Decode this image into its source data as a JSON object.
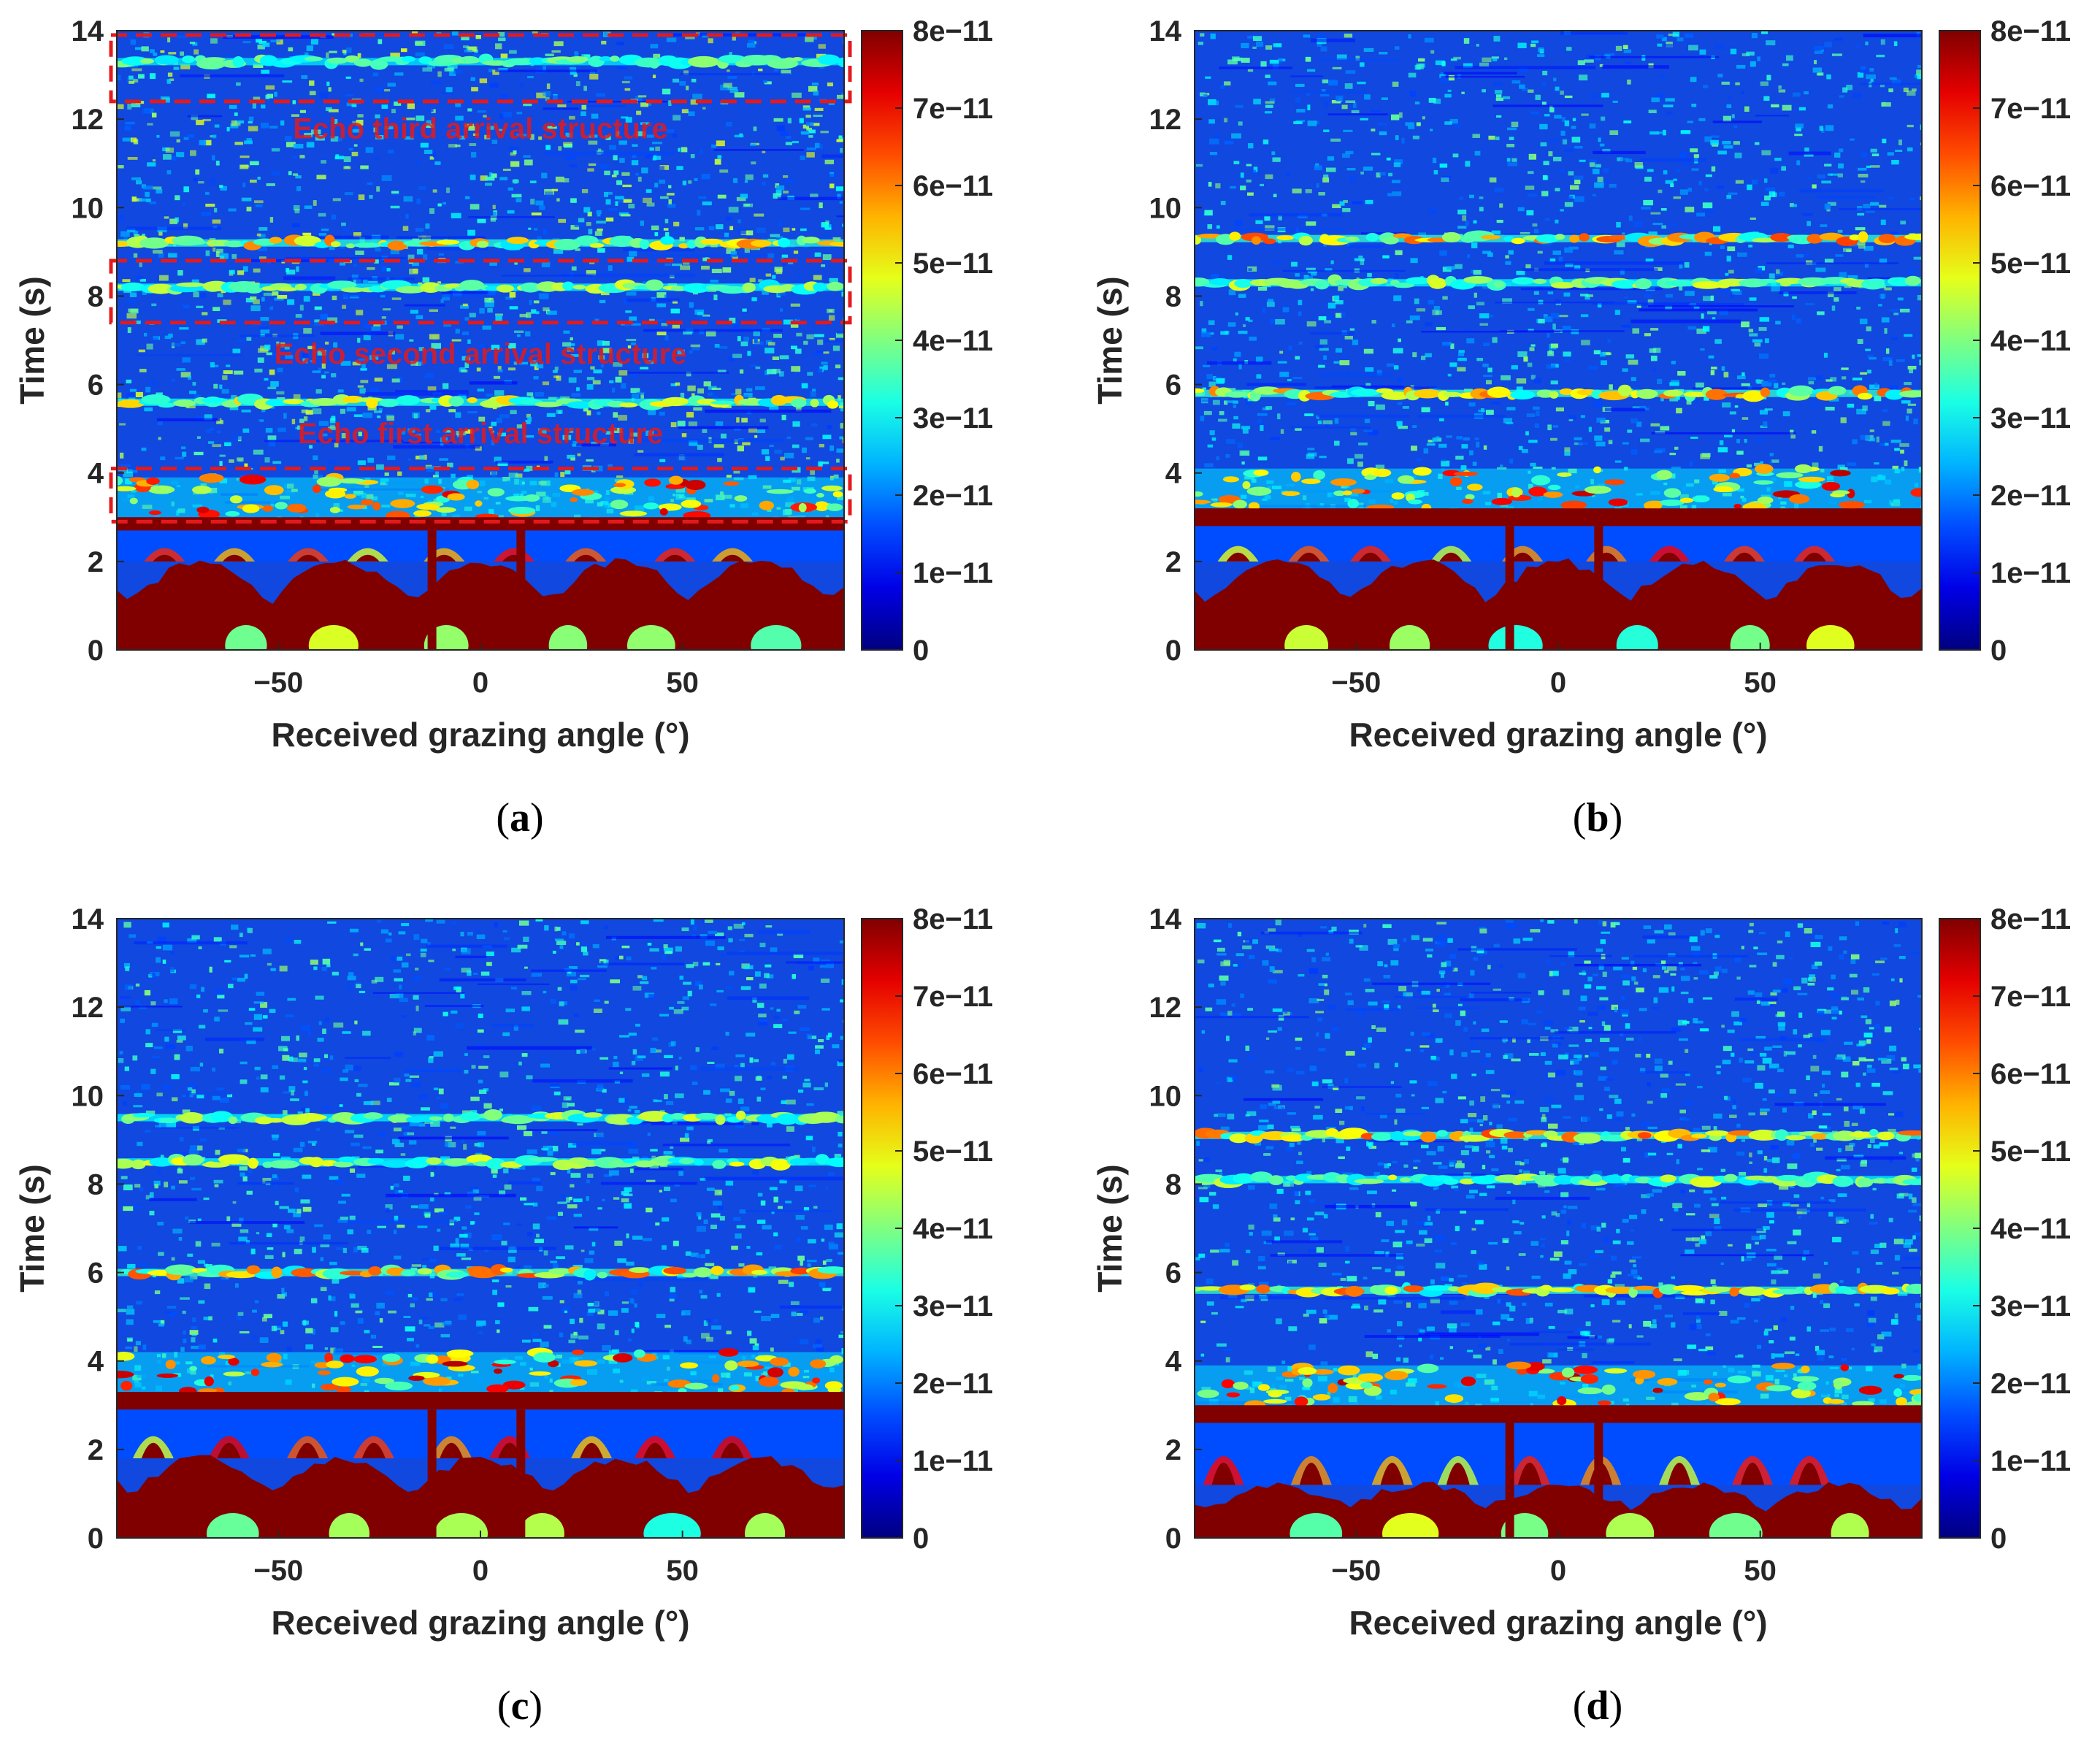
{
  "figure": {
    "colormap": "jet",
    "colors": {
      "low": "#00008f",
      "background": "#1048e0",
      "mid": "#00ffff",
      "high": "#ffff00",
      "saturated": "#800000",
      "annotation": "#e31a1c"
    }
  },
  "chart_data": [
    {
      "id": "a",
      "type": "heatmap",
      "caption_letter": "a",
      "xlabel": "Received grazing angle (°)",
      "ylabel": "Time (s)",
      "xlim": [
        -90,
        90
      ],
      "ylim": [
        0,
        14
      ],
      "xticks": [
        -50,
        0,
        50
      ],
      "xtick_labels": [
        "−50",
        "0",
        "50"
      ],
      "yticks": [
        0,
        2,
        4,
        6,
        8,
        10,
        12,
        14
      ],
      "ytick_labels": [
        "0",
        "2",
        "4",
        "6",
        "8",
        "10",
        "12",
        "14"
      ],
      "colorbar": {
        "min": 0,
        "max": 8e-11,
        "ticks": [
          0,
          1e-11,
          2e-11,
          3e-11,
          4e-11,
          5e-11,
          6e-11,
          7e-11,
          8e-11
        ],
        "tick_labels": [
          "0",
          "1e−11",
          "2e−11",
          "3e−11",
          "4e−11",
          "5e−11",
          "6e−11",
          "7e−11",
          "8e−11"
        ]
      },
      "features": {
        "direct_band": [
          0.0,
          2.0
        ],
        "strong_band": [
          2.7,
          3.0
        ],
        "echo_bands": [
          {
            "t": 5.6,
            "level": 0.6
          },
          {
            "t": 8.2,
            "level": 0.45
          },
          {
            "t": 9.2,
            "level": 0.75
          },
          {
            "t": 13.3,
            "level": 0.3
          }
        ],
        "noise_level": 0.35
      },
      "annotations": [
        {
          "name": "first-arrival",
          "text": "Echo first arrival structure",
          "t_range": [
            2.9,
            4.1
          ],
          "label_t": 4.9
        },
        {
          "name": "second-arrival",
          "text": "Echo second arrival structure",
          "t_range": [
            7.4,
            8.8
          ],
          "label_t": 6.7
        },
        {
          "name": "third-arrival",
          "text": "Echo third arrival structure",
          "t_range": [
            12.4,
            13.9
          ],
          "label_t": 11.8
        }
      ]
    },
    {
      "id": "b",
      "type": "heatmap",
      "caption_letter": "b",
      "xlabel": "Received grazing angle (°)",
      "ylabel": "Time (s)",
      "xlim": [
        -90,
        90
      ],
      "ylim": [
        0,
        14
      ],
      "xticks": [
        -50,
        0,
        50
      ],
      "xtick_labels": [
        "−50",
        "0",
        "50"
      ],
      "yticks": [
        0,
        2,
        4,
        6,
        8,
        10,
        12,
        14
      ],
      "ytick_labels": [
        "0",
        "2",
        "4",
        "6",
        "8",
        "10",
        "12",
        "14"
      ],
      "colorbar": {
        "min": 0,
        "max": 8e-11,
        "ticks": [
          0,
          1e-11,
          2e-11,
          3e-11,
          4e-11,
          5e-11,
          6e-11,
          7e-11,
          8e-11
        ],
        "tick_labels": [
          "0",
          "1e−11",
          "2e−11",
          "3e−11",
          "4e−11",
          "5e−11",
          "6e−11",
          "7e−11",
          "8e−11"
        ]
      },
      "features": {
        "direct_band": [
          0.0,
          2.0
        ],
        "strong_band": [
          2.8,
          3.2
        ],
        "echo_bands": [
          {
            "t": 5.8,
            "level": 0.85
          },
          {
            "t": 8.3,
            "level": 0.45
          },
          {
            "t": 9.3,
            "level": 0.85
          }
        ],
        "noise_level": 0.2
      },
      "annotations": []
    },
    {
      "id": "c",
      "type": "heatmap",
      "caption_letter": "c",
      "xlabel": "Received grazing angle (°)",
      "ylabel": "Time (s)",
      "xlim": [
        -90,
        90
      ],
      "ylim": [
        0,
        14
      ],
      "xticks": [
        -50,
        0,
        50
      ],
      "xtick_labels": [
        "−50",
        "0",
        "50"
      ],
      "yticks": [
        0,
        2,
        4,
        6,
        8,
        10,
        12,
        14
      ],
      "ytick_labels": [
        "0",
        "2",
        "4",
        "6",
        "8",
        "10",
        "12",
        "14"
      ],
      "colorbar": {
        "min": 0,
        "max": 8e-11,
        "ticks": [
          0,
          1e-11,
          2e-11,
          3e-11,
          4e-11,
          5e-11,
          6e-11,
          7e-11,
          8e-11
        ],
        "tick_labels": [
          "0",
          "1e−11",
          "2e−11",
          "3e−11",
          "4e−11",
          "5e−11",
          "6e−11",
          "7e−11",
          "8e−11"
        ]
      },
      "features": {
        "direct_band": [
          0.0,
          1.8
        ],
        "strong_band": [
          2.9,
          3.3
        ],
        "echo_bands": [
          {
            "t": 6.0,
            "level": 0.85
          },
          {
            "t": 8.5,
            "level": 0.5
          },
          {
            "t": 9.5,
            "level": 0.45
          }
        ],
        "noise_level": 0.18
      },
      "annotations": []
    },
    {
      "id": "d",
      "type": "heatmap",
      "caption_letter": "d",
      "xlabel": "Received grazing angle (°)",
      "ylabel": "Time (s)",
      "xlim": [
        -90,
        90
      ],
      "ylim": [
        0,
        14
      ],
      "xticks": [
        -50,
        0,
        50
      ],
      "xtick_labels": [
        "−50",
        "0",
        "50"
      ],
      "yticks": [
        0,
        2,
        4,
        6,
        8,
        10,
        12,
        14
      ],
      "ytick_labels": [
        "0",
        "2",
        "4",
        "6",
        "8",
        "10",
        "12",
        "14"
      ],
      "colorbar": {
        "min": 0,
        "max": 8e-11,
        "ticks": [
          0,
          1e-11,
          2e-11,
          3e-11,
          4e-11,
          5e-11,
          6e-11,
          7e-11,
          8e-11
        ],
        "tick_labels": [
          "0",
          "1e−11",
          "2e−11",
          "3e−11",
          "4e−11",
          "5e−11",
          "6e−11",
          "7e−11",
          "8e−11"
        ]
      },
      "features": {
        "direct_band": [
          0.0,
          1.2
        ],
        "strong_band": [
          2.6,
          3.0
        ],
        "echo_bands": [
          {
            "t": 5.6,
            "level": 0.85
          },
          {
            "t": 8.1,
            "level": 0.45
          },
          {
            "t": 9.1,
            "level": 0.85
          }
        ],
        "noise_level": 0.2
      },
      "annotations": []
    }
  ]
}
